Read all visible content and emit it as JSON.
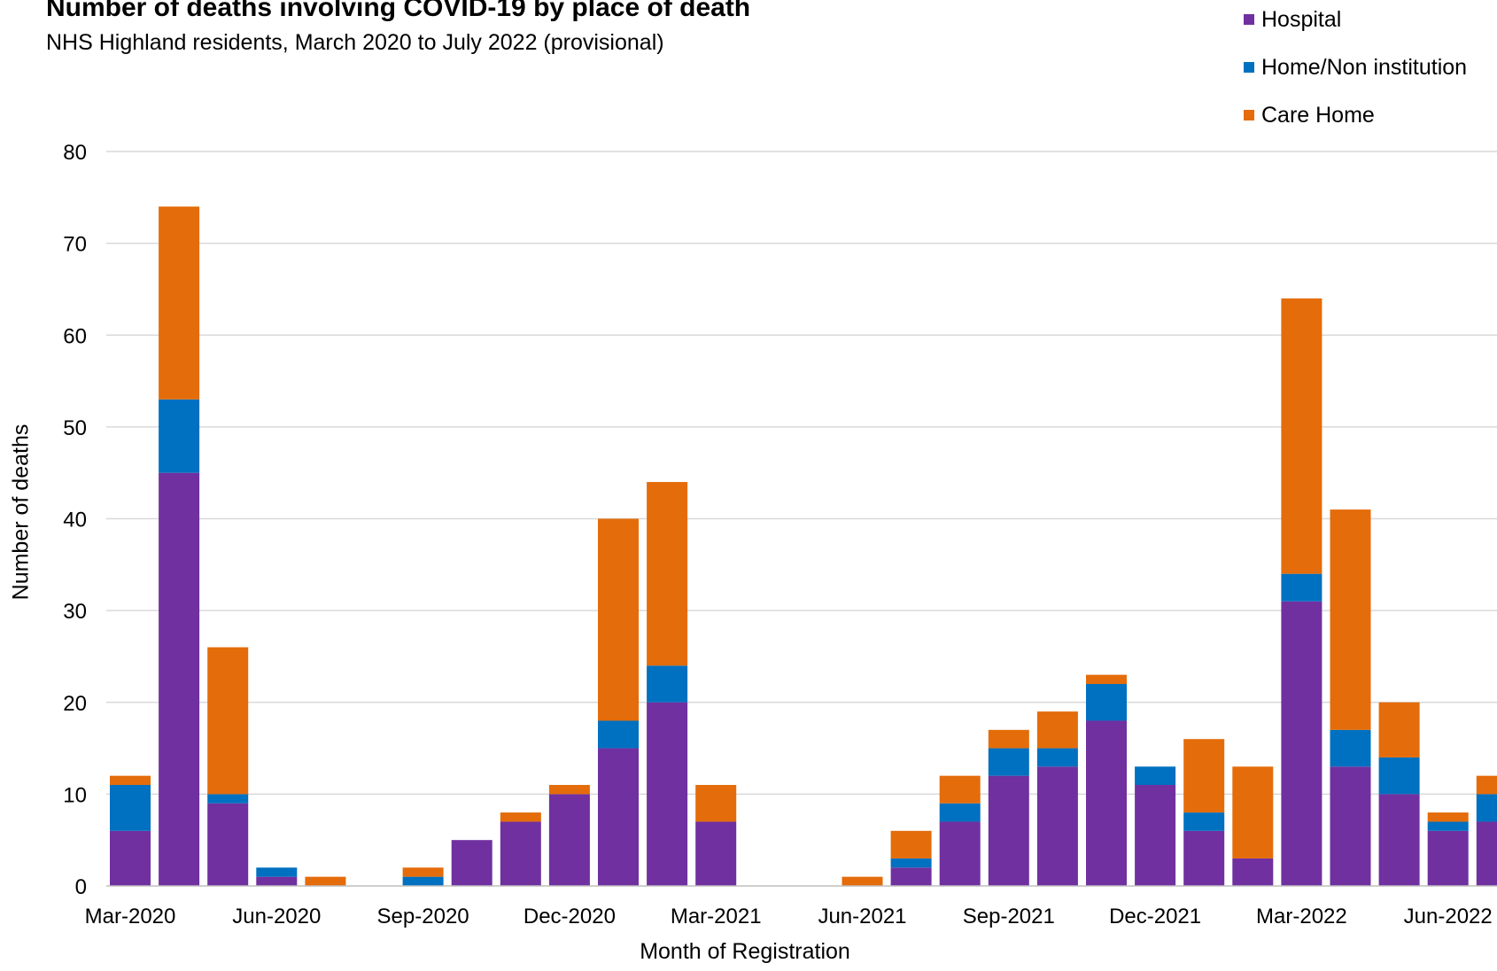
{
  "chart_data": {
    "type": "bar",
    "stacked": true,
    "title": "Number of deaths involving COVID-19 by place of death",
    "subtitle": "NHS Highland residents, March 2020 to July 2022 (provisional)",
    "xlabel": "Month of Registration",
    "ylabel": "Number of deaths",
    "ylim": [
      0,
      80
    ],
    "yticks": [
      0,
      10,
      20,
      30,
      40,
      50,
      60,
      70,
      80
    ],
    "grid": true,
    "legend_position": "top-right",
    "categories": [
      "Mar-2020",
      "Apr-2020",
      "May-2020",
      "Jun-2020",
      "Jul-2020",
      "Aug-2020",
      "Sep-2020",
      "Oct-2020",
      "Nov-2020",
      "Dec-2020",
      "Jan-2021",
      "Feb-2021",
      "Mar-2021",
      "Apr-2021",
      "May-2021",
      "Jun-2021",
      "Jul-2021",
      "Aug-2021",
      "Sep-2021",
      "Oct-2021",
      "Nov-2021",
      "Dec-2021",
      "Jan-2022",
      "Feb-2022",
      "Mar-2022",
      "Apr-2022",
      "May-2022",
      "Jun-2022",
      "Jul-2022"
    ],
    "x_tick_labels": [
      "Mar-2020",
      "Jun-2020",
      "Sep-2020",
      "Dec-2020",
      "Mar-2021",
      "Jun-2021",
      "Sep-2021",
      "Dec-2021",
      "Mar-2022",
      "Jun-2022"
    ],
    "series": [
      {
        "name": "Hospital",
        "color": "#7030a0",
        "values": [
          6,
          45,
          9,
          1,
          0,
          0,
          0,
          5,
          7,
          10,
          15,
          20,
          7,
          0,
          0,
          0,
          2,
          7,
          12,
          13,
          18,
          11,
          6,
          3,
          31,
          13,
          10,
          6,
          7
        ]
      },
      {
        "name": "Home/Non institution",
        "color": "#0070c0",
        "values": [
          5,
          8,
          1,
          1,
          0,
          0,
          1,
          0,
          0,
          0,
          3,
          4,
          0,
          0,
          0,
          0,
          1,
          2,
          3,
          2,
          4,
          2,
          2,
          0,
          3,
          4,
          4,
          1,
          3
        ]
      },
      {
        "name": "Care Home",
        "color": "#e46c0a",
        "values": [
          1,
          21,
          16,
          0,
          1,
          0,
          1,
          0,
          1,
          1,
          22,
          20,
          4,
          0,
          0,
          1,
          3,
          3,
          2,
          4,
          1,
          0,
          8,
          10,
          30,
          24,
          6,
          1,
          2
        ]
      }
    ]
  }
}
